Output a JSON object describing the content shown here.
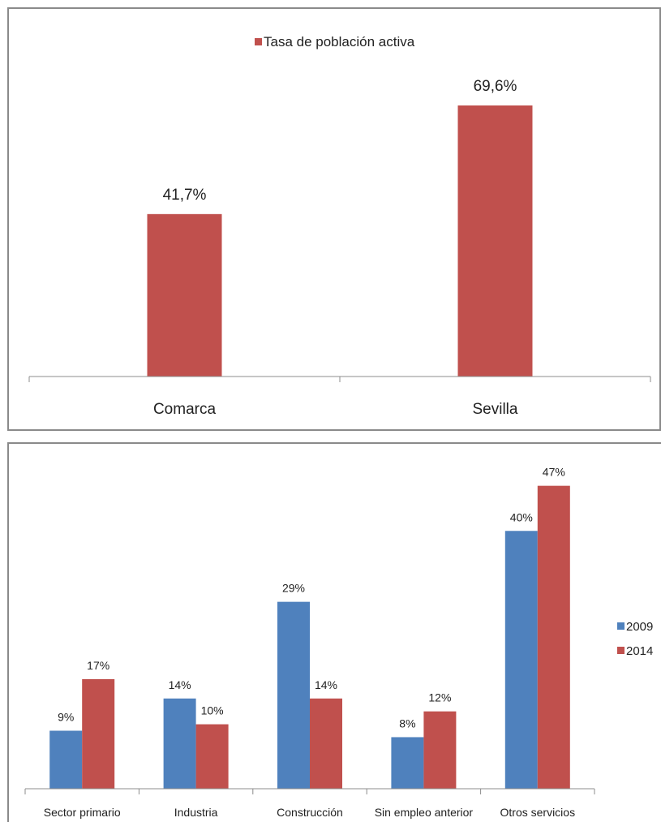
{
  "chart_data": [
    {
      "type": "bar",
      "categories": [
        "Comarca",
        "Sevilla"
      ],
      "series": [
        {
          "name": "Tasa de población activa",
          "values": [
            41.7,
            69.6
          ],
          "labels": [
            "41,7%",
            "69,6%"
          ],
          "color": "#c0504d"
        }
      ],
      "ylim": [
        0,
        85
      ],
      "grid": false,
      "legend": "top-center"
    },
    {
      "type": "bar",
      "categories": [
        "Sector primario",
        "Industria",
        "Construcción",
        "Sin empleo anterior",
        "Otros servicios"
      ],
      "series": [
        {
          "name": "2009",
          "values": [
            9,
            14,
            29,
            8,
            40
          ],
          "labels": [
            "9%",
            "14%",
            "29%",
            "8%",
            "40%"
          ],
          "color": "#4f81bd"
        },
        {
          "name": "2014",
          "values": [
            17,
            10,
            14,
            12,
            47
          ],
          "labels": [
            "17%",
            "10%",
            "14%",
            "12%",
            "47%"
          ],
          "color": "#c0504d"
        }
      ],
      "ylim": [
        0,
        53
      ],
      "grid": false,
      "legend": "right"
    }
  ]
}
